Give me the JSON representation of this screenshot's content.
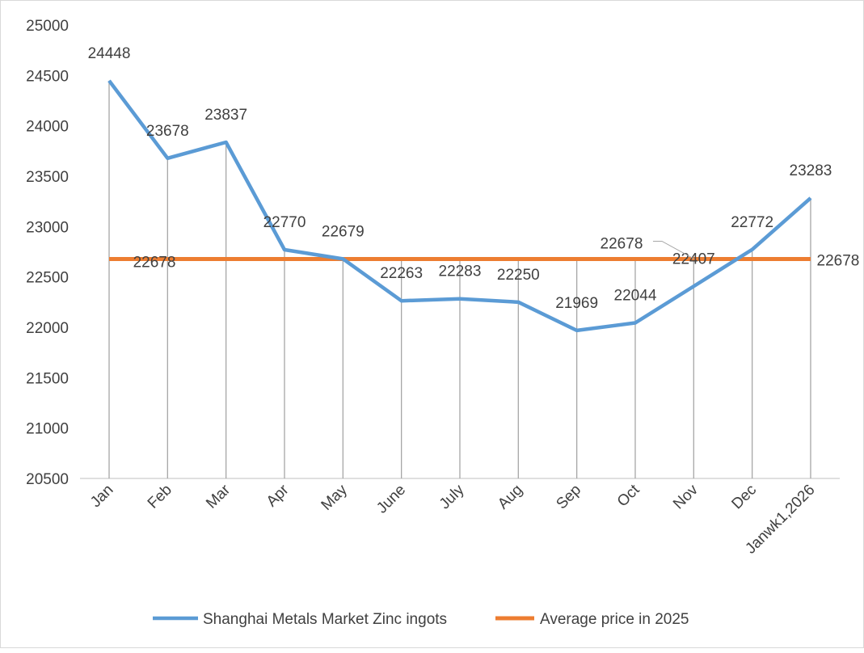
{
  "chart_data": {
    "type": "line",
    "categories": [
      "Jan",
      "Feb",
      "Mar",
      "Apr",
      "May",
      "June",
      "July",
      "Aug",
      "Sep",
      "Oct",
      "Nov",
      "Dec",
      "Janwk1,2026"
    ],
    "series": [
      {
        "name": "Shanghai Metals Market Zinc ingots",
        "color": "#5b9bd5",
        "values": [
          24448,
          23678,
          23837,
          22770,
          22679,
          22263,
          22283,
          22250,
          21969,
          22044,
          22407,
          22772,
          23283
        ]
      },
      {
        "name": "Average price in 2025",
        "color": "#ed7d31",
        "values": [
          22678,
          22678,
          22678,
          22678,
          22678,
          22678,
          22678,
          22678,
          22678,
          22678,
          22678,
          22678,
          22678
        ]
      }
    ],
    "average_labels_shown_at": [
      "Jan",
      "Oct",
      "Janwk1,2026"
    ],
    "ylim": [
      20500,
      25000
    ],
    "yticks": [
      20500,
      21000,
      21500,
      22000,
      22500,
      23000,
      23500,
      24000,
      24500,
      25000
    ],
    "drop_lines": true,
    "grid": false,
    "legend": "bottom"
  }
}
